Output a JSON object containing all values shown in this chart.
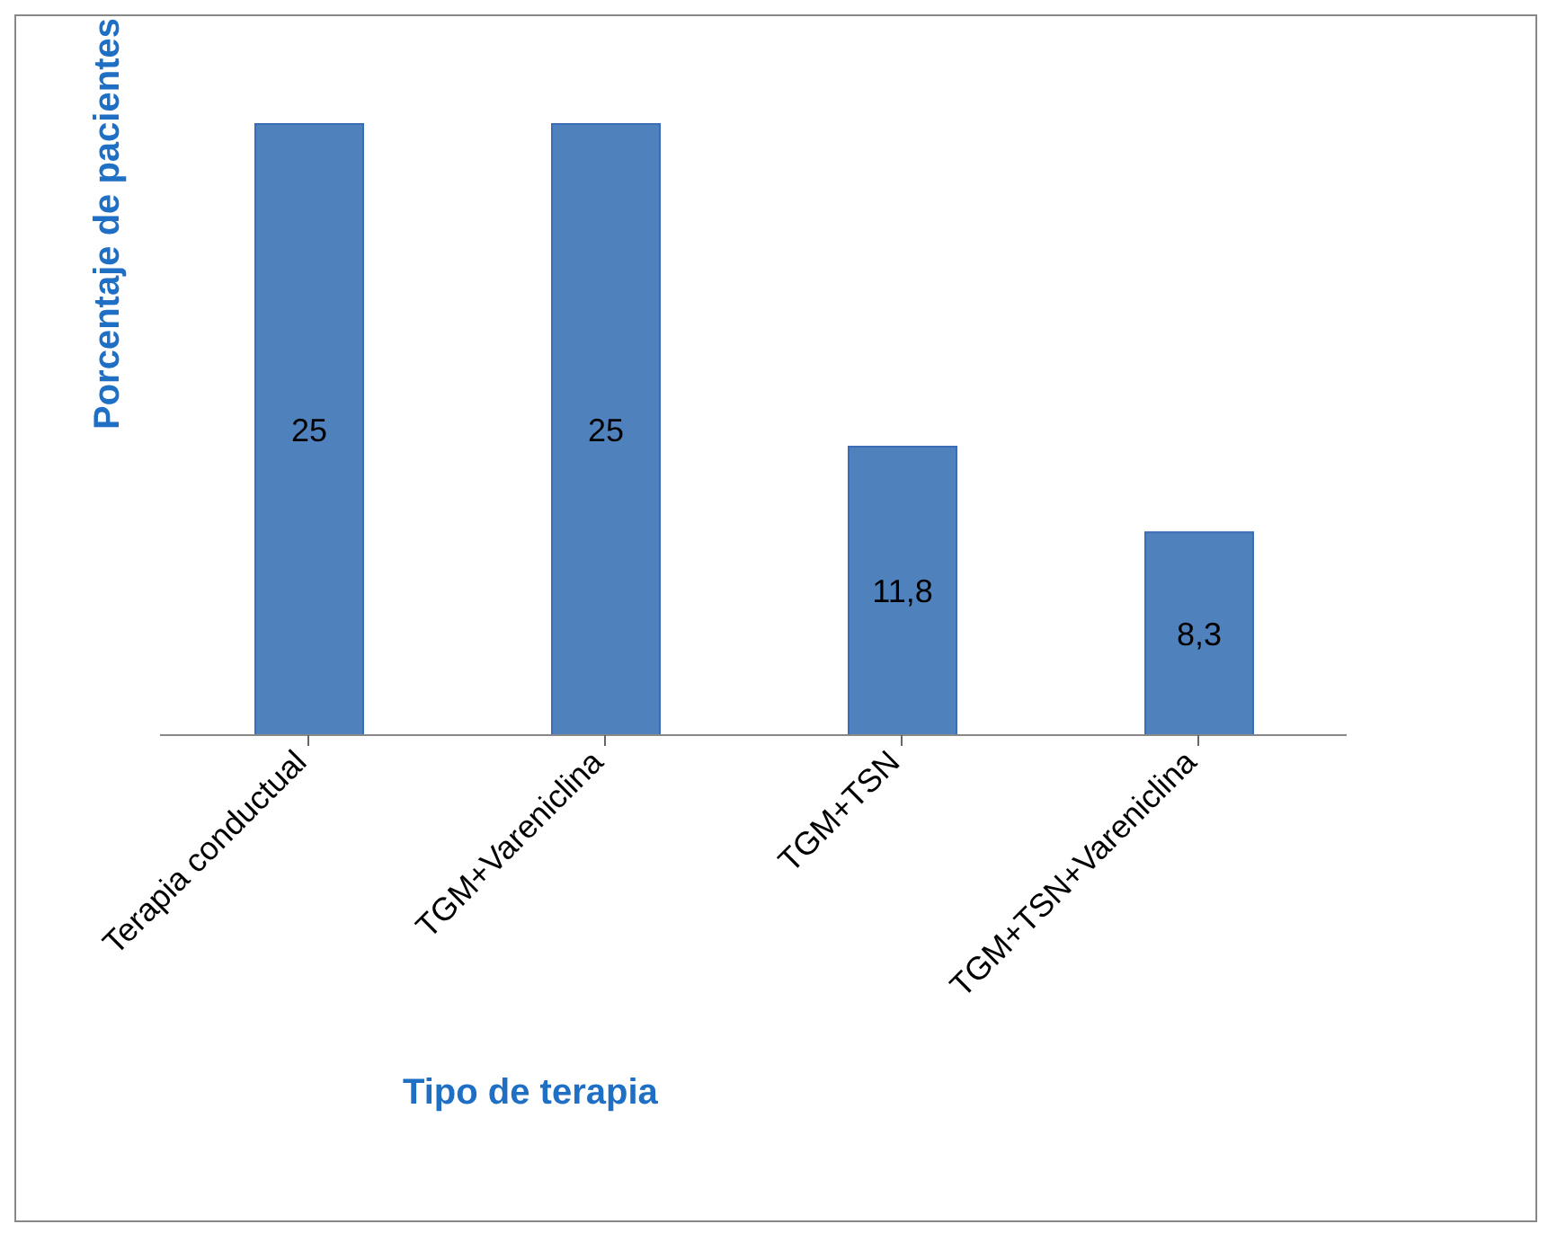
{
  "chart_data": {
    "type": "bar",
    "xlabel": "Tipo de terapia",
    "ylabel": "Porcentaje de pacientes",
    "categories": [
      "Terapia conductual",
      "TGM+Vareniclina",
      "TGM+TSN",
      "TGM+TSN+Vareniclina"
    ],
    "values": [
      25,
      25,
      11.8,
      8.3
    ],
    "value_labels": [
      "25",
      "25",
      "11,8",
      "8,3"
    ],
    "color": "#4f81bd",
    "grid": false,
    "legend": false
  }
}
